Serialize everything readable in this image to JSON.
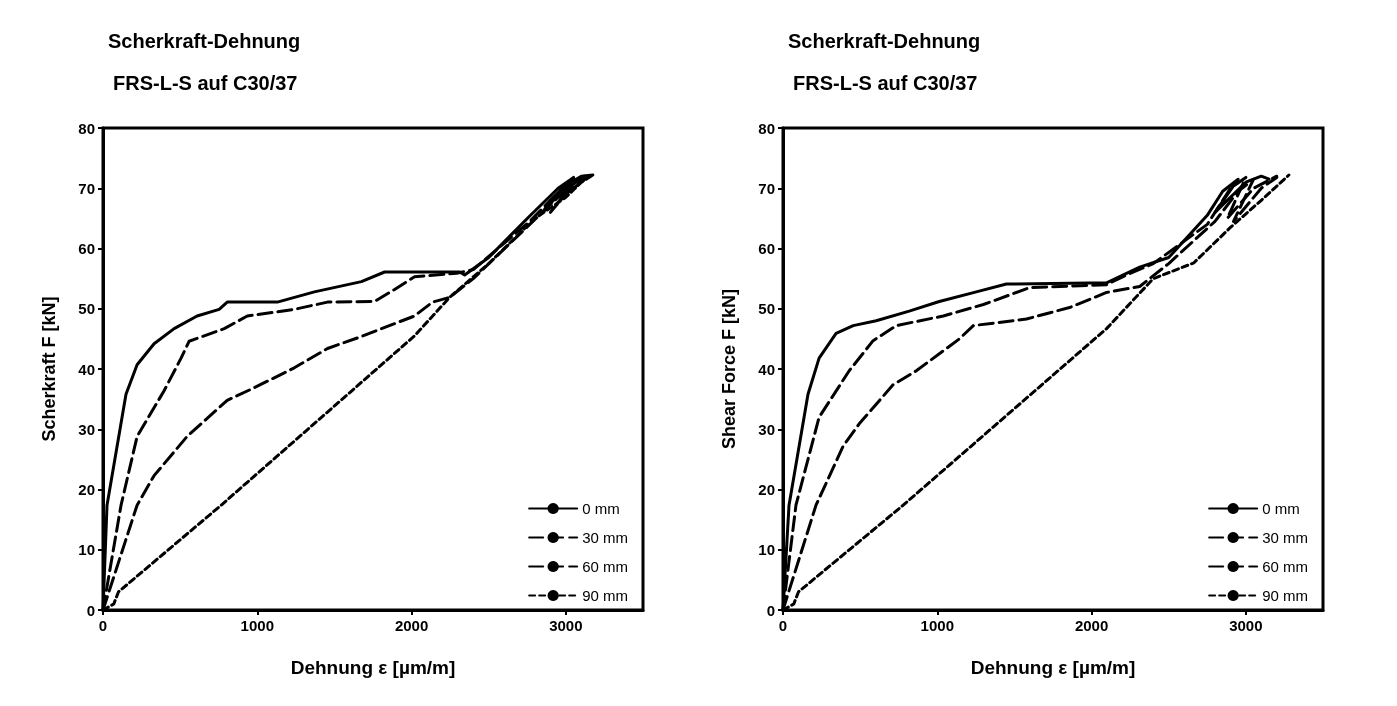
{
  "chart_data": [
    {
      "type": "line",
      "title": "Scherkraft-Dehnung",
      "subtitle": "FRS-L-S auf C30/37",
      "xlabel": "Dehnung ε [µm/m]",
      "ylabel": "Scherkraft F [kN]",
      "xlim": [
        0,
        3500
      ],
      "xticks": [
        0,
        1000,
        2000,
        3000
      ],
      "ylim": [
        0,
        80
      ],
      "yticks": [
        0,
        10,
        20,
        30,
        40,
        50,
        60,
        70,
        80
      ],
      "grid": false,
      "legend": "bottom right",
      "marker": "none",
      "series": [
        {
          "name": "0 mm",
          "color": "#000000",
          "line_style": "solid",
          "x": [
            0,
            26,
            149,
            221,
            331,
            461,
            610,
            753,
            805,
            1130,
            1370,
            1675,
            1825,
            2019,
            2312,
            2344,
            2500,
            2766,
            2950,
            3050,
            2900,
            2850,
            3000,
            3100,
            3175
          ],
          "values": [
            0,
            17.4,
            35.8,
            40.7,
            44.2,
            46.7,
            48.8,
            49.9,
            51.1,
            51.1,
            52.8,
            54.5,
            56.1,
            56.1,
            56.1,
            55.6,
            58.5,
            65.4,
            70,
            71.8,
            68,
            66,
            70.5,
            72,
            72.2
          ]
        },
        {
          "name": "30 mm",
          "color": "#000000",
          "line_style": "dashed",
          "x": [
            0,
            117,
            221,
            396,
            506,
            558,
            786,
            935,
            1240,
            1455,
            1760,
            1890,
            2019,
            2292,
            2400,
            2766,
            2900,
            3050,
            2880,
            3000,
            3120,
            3000,
            3150
          ],
          "values": [
            0,
            17.4,
            28.8,
            36.4,
            41.8,
            44.6,
            46.7,
            48.8,
            49.9,
            51.1,
            51.2,
            53.2,
            55.3,
            55.9,
            56.5,
            64.5,
            68,
            71.5,
            67,
            70,
            72,
            69,
            72
          ]
        },
        {
          "name": "60 mm",
          "color": "#000000",
          "line_style": "dashed",
          "x": [
            0,
            221,
            331,
            545,
            805,
            981,
            1240,
            1455,
            1675,
            2019,
            2136,
            2247,
            2400,
            2766,
            2950,
            3050,
            2900,
            3080,
            3150
          ],
          "values": [
            0,
            17.4,
            22.3,
            28.8,
            34.8,
            36.9,
            40.2,
            43.4,
            45.4,
            48.8,
            51.1,
            51.9,
            55,
            64,
            68.5,
            71,
            66,
            71.5,
            71.8
          ]
        },
        {
          "name": "90 mm",
          "color": "#000000",
          "line_style": "dotted",
          "x": [
            0,
            70,
            100,
            766,
            2019,
            2247,
            2500,
            2800,
            3000,
            3100,
            3175
          ],
          "values": [
            0,
            1,
            3,
            17.4,
            45.5,
            51.9,
            57.5,
            65,
            68.5,
            71,
            72.2
          ]
        }
      ]
    },
    {
      "type": "line",
      "title": "Scherkraft-Dehnung",
      "subtitle": "FRS-L-S auf C30/37",
      "xlabel": "Dehnung ε [µm/m]",
      "ylabel": "Shear Force F [kN]",
      "xlim": [
        0,
        3500
      ],
      "xticks": [
        0,
        1000,
        2000,
        3000
      ],
      "ylim": [
        0,
        80
      ],
      "yticks": [
        0,
        10,
        20,
        30,
        40,
        50,
        60,
        70,
        80
      ],
      "grid": false,
      "legend": "bottom right",
      "marker": "none",
      "series": [
        {
          "name": "0 mm",
          "color": "#000000",
          "line_style": "solid",
          "x": [
            0,
            39,
            162,
            234,
            344,
            455,
            604,
            818,
            1013,
            1253,
            1448,
            2097,
            2312,
            2500,
            2750,
            2850,
            2950,
            2800,
            3000,
            3100,
            3150
          ],
          "values": [
            0,
            17.4,
            35.8,
            41.8,
            45.9,
            47.2,
            48,
            49.6,
            51.2,
            52.8,
            54.1,
            54.3,
            56.9,
            58.5,
            65.5,
            69.5,
            71.5,
            66,
            71,
            72,
            71.5
          ]
        },
        {
          "name": "30 mm",
          "color": "#000000",
          "line_style": "dashed",
          "x": [
            0,
            84,
            234,
            429,
            584,
            734,
            1039,
            1299,
            1597,
            2097,
            2227,
            2400,
            2750,
            2900,
            3000,
            2880,
            3050,
            3200
          ],
          "values": [
            0,
            17.4,
            32,
            39.7,
            44.7,
            47.2,
            48.8,
            50.7,
            53.5,
            54,
            55.6,
            57.5,
            64,
            70,
            71.8,
            65,
            70,
            72
          ]
        },
        {
          "name": "60 mm",
          "color": "#000000",
          "line_style": "dashed",
          "x": [
            0,
            214,
            390,
            494,
            714,
            864,
            1143,
            1234,
            1578,
            1857,
            2097,
            2312,
            2500,
            2800,
            2950,
            3050,
            2920,
            3100,
            3200
          ],
          "values": [
            0,
            17.4,
            27.2,
            30.9,
            37.4,
            39.7,
            45,
            47.2,
            48.3,
            50.2,
            52.7,
            53.7,
            57.5,
            64.5,
            69.5,
            71.5,
            64.5,
            70,
            71.8
          ]
        },
        {
          "name": "90 mm",
          "color": "#000000",
          "line_style": "dotted",
          "x": [
            0,
            70,
            100,
            779,
            2097,
            2400,
            2662,
            2900,
            3100,
            3279
          ],
          "values": [
            0,
            1,
            3,
            17.4,
            46.7,
            55,
            57.6,
            63.5,
            68,
            72.2
          ]
        }
      ]
    }
  ]
}
